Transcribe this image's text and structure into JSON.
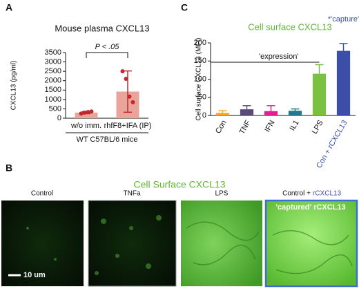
{
  "panel_labels": [
    "A",
    "B",
    "C"
  ],
  "chart_data": [
    {
      "type": "bar",
      "title": "Mouse plasma CXCL13",
      "ylabel": "CXCL13 (pg/ml)",
      "xlabel": "WT C57BL/6 mice",
      "categories": [
        "w/o imm.",
        "rhfF8+IFA (IP)"
      ],
      "values": [
        300,
        1420
      ],
      "errors": [
        60,
        1100
      ],
      "points": [
        [
          250,
          300,
          330,
          360
        ],
        [
          2500,
          2100,
          1150,
          850
        ]
      ],
      "color": "#e9a59b",
      "point_color": "#c0282d",
      "error_color": "#c0282d",
      "ylim": [
        0,
        3500
      ],
      "yticks": [
        0,
        500,
        1000,
        1500,
        2000,
        2500,
        3000,
        3500
      ],
      "significance": "P < .05"
    },
    {
      "type": "bar",
      "title": "Cell surface CXCL13",
      "title_color": "#5fb832",
      "ylabel": "Cell surface CXCL13 (MFI)",
      "categories": [
        "Con",
        "TNF",
        "IFN",
        "IL1",
        "LPS",
        "Con + rCXCL13"
      ],
      "values": [
        7,
        17,
        12,
        13,
        115,
        178
      ],
      "errors": [
        6,
        10,
        15,
        5,
        25,
        20
      ],
      "colors": [
        "#f5a623",
        "#5b4a7a",
        "#e0208c",
        "#1f7a8c",
        "#7ac143",
        "#3b4fa8"
      ],
      "ylim": [
        0,
        200
      ],
      "yticks": [
        0,
        50,
        100,
        150,
        200
      ],
      "annotations": [
        "'expression'",
        "*'capture'"
      ]
    }
  ],
  "image_panel": {
    "title": "Cell Surface CXCL13",
    "images": [
      {
        "label": "Control"
      },
      {
        "label": "TNFa"
      },
      {
        "label": "LPS"
      },
      {
        "label": "Control +",
        "label_highlight": "rCXCL13"
      }
    ],
    "overlay": "'captured' rCXCL13",
    "scale_bar": "10 um"
  }
}
